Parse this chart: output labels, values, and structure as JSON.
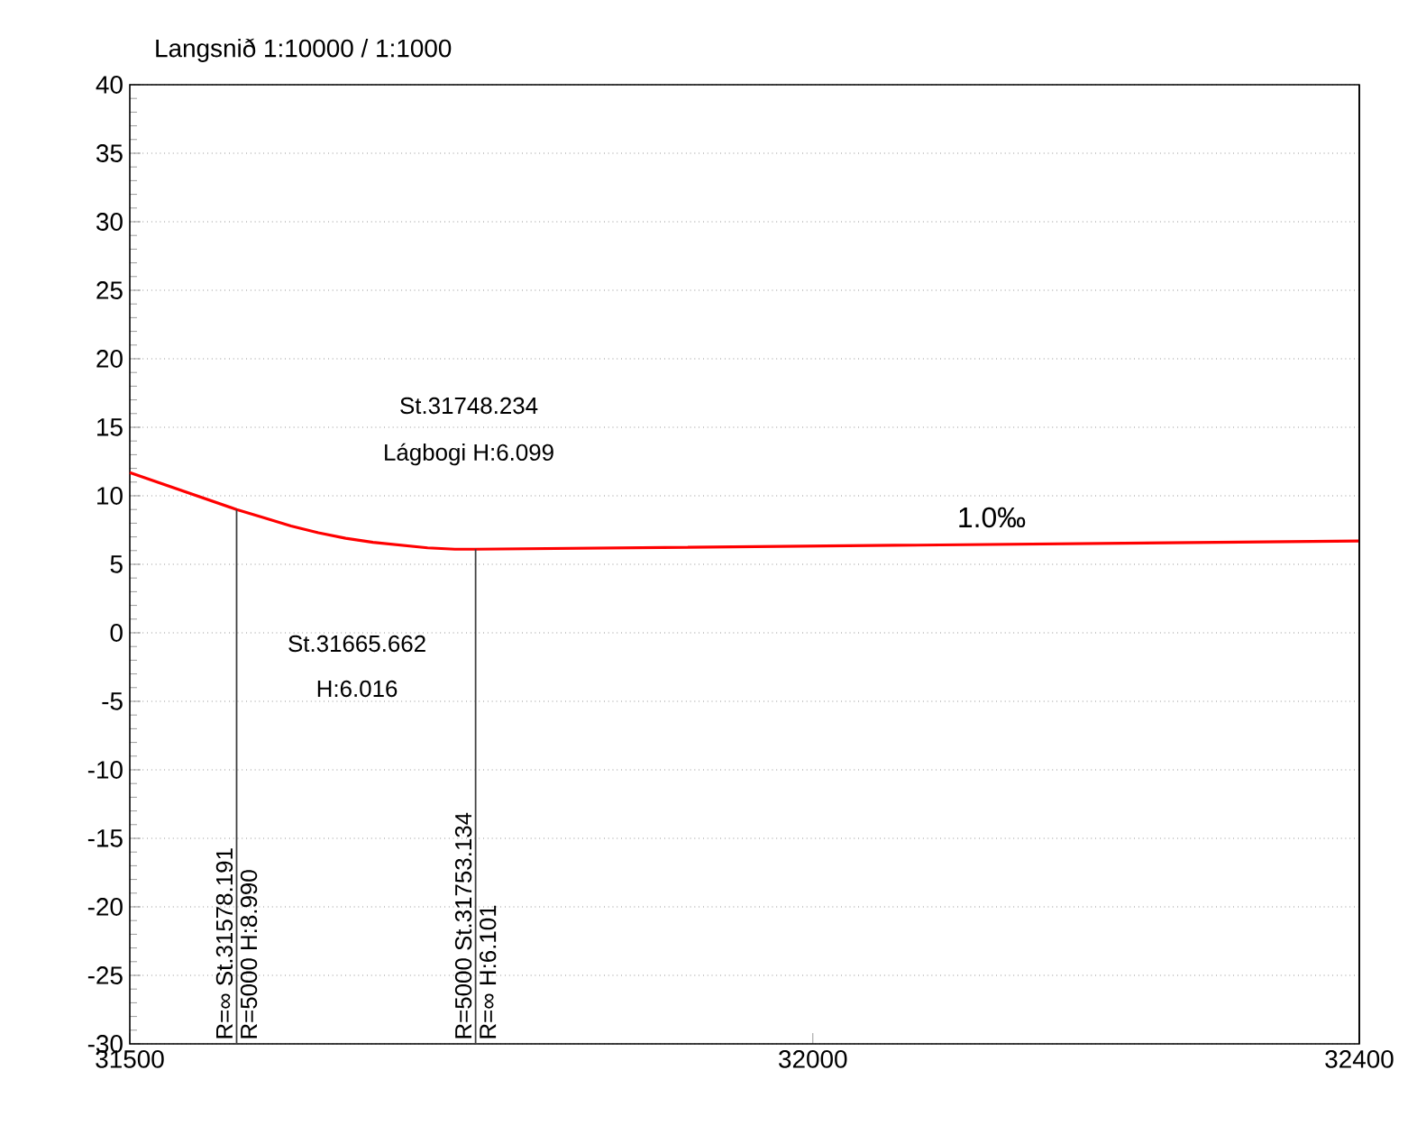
{
  "chart_data": {
    "type": "line",
    "title": "Langsnið 1:10000 / 1:1000",
    "x": [
      31500,
      31578.191,
      31598,
      31618,
      31638,
      31658,
      31678,
      31698,
      31718,
      31738,
      31748.234,
      31753.134,
      32400
    ],
    "series": [
      {
        "color": "#ff0000",
        "values": [
          11.7,
          9.0,
          8.4,
          7.8,
          7.3,
          6.9,
          6.6,
          6.4,
          6.2,
          6.1,
          6.1,
          6.1,
          6.7
        ]
      }
    ],
    "xlim": [
      31500,
      32400
    ],
    "xticks": [
      31500,
      32000,
      32400
    ],
    "ylim": [
      -30,
      40
    ],
    "yticks": [
      -30,
      -25,
      -20,
      -15,
      -10,
      -5,
      0,
      5,
      10,
      15,
      20,
      25,
      30,
      35,
      40
    ],
    "grid": "y",
    "marker": "none",
    "line_style": "solid",
    "ref_lines": [
      {
        "axis": "x",
        "value": 31578.191,
        "color": "#404040"
      },
      {
        "axis": "x",
        "value": 31753.134,
        "color": "#404040"
      }
    ],
    "annotations": [
      "St.31748.234",
      "Lágbogi H:6.099",
      "St.31665.662",
      "H:6.016",
      "R=∞  St.31578.191",
      "R=5000  H:8.990",
      "R=5000  St.31753.134",
      "R=∞  H:6.101",
      "1.0‰"
    ]
  }
}
